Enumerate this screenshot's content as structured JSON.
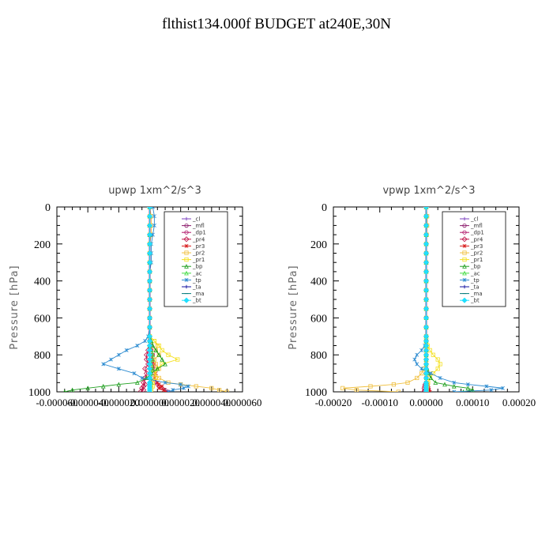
{
  "page": {
    "title": "flthist134.000f  BUDGET at240E,30N"
  },
  "colors": {
    "_cl": "#7b3fbf",
    "_mfl": "#8b1a6b",
    "_dp1": "#b0186a",
    "_pr4": "#c0144a",
    "_pr3": "#d81818",
    "_pr2": "#f0c040",
    "_pr1": "#f4e020",
    "_bp": "#20a020",
    "_ac": "#44dd44",
    "_tp": "#2a8ad0",
    "_ta": "#1010a0",
    "_ma": "#007878",
    "_bt": "#20e0ff"
  },
  "chart_data": [
    {
      "type": "line",
      "title": "upwp   1xm^2/s^3",
      "ylabel": "Pressure  [hPa]",
      "ylim": [
        1000,
        0
      ],
      "yticks": [
        "0",
        "200",
        "400",
        "600",
        "800",
        "1000"
      ],
      "xlim": [
        -6e-05,
        6e-05
      ],
      "xticks": [
        "-0.000060",
        "-0.000040",
        "-0.000020",
        "0.000000",
        "0.000020",
        "0.000040",
        "0.000060"
      ],
      "legend": [
        "_cl",
        "_mfl",
        "_dp1",
        "_pr4",
        "_pr3",
        "_pr2",
        "_pr1",
        "_bp",
        "_ac",
        "_tp",
        "_ta",
        "_ma",
        "_bt"
      ],
      "legend_position": "top-right",
      "pressure": [
        0,
        50,
        100,
        150,
        200,
        250,
        300,
        350,
        400,
        450,
        500,
        550,
        600,
        650,
        700,
        725,
        750,
        775,
        800,
        825,
        850,
        875,
        900,
        925,
        950,
        960,
        970,
        980,
        990,
        1000
      ],
      "series": [
        {
          "name": "_cl",
          "values": [
            0,
            0,
            0,
            0,
            0,
            0,
            0,
            0,
            0,
            0,
            0,
            0,
            0,
            0,
            0,
            0,
            0,
            0,
            0,
            0,
            0,
            0,
            0,
            0,
            0,
            0,
            0,
            0,
            0,
            0
          ]
        },
        {
          "name": "_mfl",
          "values": [
            0,
            0,
            0,
            0,
            0,
            0,
            0,
            0,
            0,
            0,
            0,
            0,
            0,
            0,
            0,
            0,
            0,
            0,
            0,
            0,
            0,
            0,
            0,
            0,
            0,
            0,
            0,
            0,
            0,
            0
          ]
        },
        {
          "name": "_dp1",
          "values": [
            0,
            0,
            0,
            0,
            0,
            0,
            0,
            0,
            0,
            0,
            0,
            0,
            0,
            0,
            0,
            0,
            0,
            1e-06,
            2e-06,
            1e-06,
            2e-06,
            3e-06,
            2e-06,
            4e-06,
            3e-06,
            5e-06,
            6e-06,
            8e-06,
            1e-05,
            1.2e-05
          ]
        },
        {
          "name": "_pr4",
          "values": [
            0,
            0,
            0,
            0,
            0,
            0,
            0,
            0,
            0,
            0,
            0,
            0,
            0,
            0,
            0,
            0,
            0,
            -1e-06,
            -2e-06,
            -2e-06,
            -1e-06,
            -3e-06,
            -2e-06,
            -3e-06,
            -4e-06,
            -3e-06,
            -4e-06,
            -5e-06,
            -4e-06,
            -6e-06
          ]
        },
        {
          "name": "_pr3",
          "values": [
            0,
            0,
            0,
            0,
            0,
            0,
            0,
            0,
            0,
            0,
            0,
            0,
            0,
            0,
            0,
            0,
            1e-06,
            1e-06,
            2e-06,
            2e-06,
            3e-06,
            2e-06,
            4e-06,
            3e-06,
            5e-06,
            6e-06,
            8e-06,
            6e-06,
            9e-06,
            1e-05
          ]
        },
        {
          "name": "_pr2",
          "values": [
            0,
            1e-06,
            1e-06,
            1e-06,
            0,
            0,
            0,
            0,
            0,
            0,
            0,
            0,
            0,
            0,
            0,
            3e-06,
            5e-06,
            4e-06,
            6e-06,
            3e-06,
            4e-06,
            6e-06,
            3e-06,
            6e-06,
            1.2e-05,
            2e-05,
            3e-05,
            4e-05,
            4.5e-05,
            5e-05
          ]
        },
        {
          "name": "_pr1",
          "values": [
            0,
            0,
            0,
            0,
            0,
            0,
            0,
            0,
            0,
            0,
            0,
            0,
            0,
            0,
            0,
            3e-06,
            6e-06,
            8e-06,
            1.2e-05,
            1.8e-05,
            8e-06,
            5e-06,
            3e-06,
            4e-06,
            2e-06,
            1e-06,
            2e-06,
            1e-06,
            1e-06,
            1e-06
          ]
        },
        {
          "name": "_bp",
          "values": [
            0,
            0,
            0,
            0,
            0,
            0,
            0,
            0,
            0,
            0,
            0,
            0,
            0,
            0,
            0,
            1e-06,
            2e-06,
            4e-06,
            6e-06,
            8e-06,
            1e-05,
            5e-06,
            1e-06,
            -2e-06,
            -8e-06,
            -2e-05,
            -3e-05,
            -4e-05,
            -5e-05,
            -5.5e-05
          ]
        },
        {
          "name": "_ac",
          "values": [
            0,
            0,
            0,
            0,
            0,
            0,
            0,
            0,
            0,
            0,
            0,
            0,
            0,
            0,
            0,
            0,
            0,
            1e-06,
            2e-06,
            2e-06,
            1e-06,
            2e-06,
            1e-06,
            1e-06,
            1e-06,
            0,
            0,
            0,
            0,
            0
          ]
        },
        {
          "name": "_tp",
          "values": [
            2e-06,
            3e-06,
            3e-06,
            2e-06,
            1e-06,
            1e-06,
            1e-06,
            0,
            0,
            0,
            0,
            0,
            0,
            0,
            -1e-06,
            -3e-06,
            -8e-06,
            -1.5e-05,
            -2e-05,
            -2.5e-05,
            -3e-05,
            -2e-05,
            -1e-05,
            -5e-06,
            1e-05,
            2e-05,
            2.5e-05,
            2.2e-05,
            1.5e-05,
            1.2e-05
          ]
        },
        {
          "name": "_ta",
          "values": [
            0,
            0,
            0,
            0,
            0,
            0,
            0,
            0,
            0,
            0,
            0,
            0,
            0,
            0,
            0,
            0,
            0,
            0,
            0,
            0,
            0,
            0,
            0,
            0,
            0,
            0,
            0,
            0,
            0,
            0
          ]
        },
        {
          "name": "_ma",
          "values": [
            0,
            0,
            0,
            0,
            0,
            0,
            0,
            0,
            0,
            0,
            0,
            0,
            0,
            0,
            0,
            0,
            0,
            0,
            0,
            0,
            0,
            0,
            0,
            0,
            0,
            0,
            0,
            0,
            0,
            0
          ]
        },
        {
          "name": "_bt",
          "values": [
            0,
            0,
            0,
            0,
            0,
            0,
            0,
            0,
            0,
            0,
            0,
            0,
            0,
            0,
            0,
            0,
            0,
            0,
            0,
            0,
            0,
            0,
            0,
            0,
            0,
            0,
            0,
            0,
            0,
            0
          ]
        }
      ]
    },
    {
      "type": "line",
      "title": "vpwp   1xm^2/s^3",
      "ylabel": "Pressure  [hPa]",
      "ylim": [
        1000,
        0
      ],
      "yticks": [
        "0",
        "200",
        "400",
        "600",
        "800",
        "1000"
      ],
      "xlim": [
        -0.0002,
        0.0002
      ],
      "xticks": [
        "-0.00020",
        "-0.00010",
        "0.00000",
        "0.00010",
        "0.00020"
      ],
      "legend": [
        "_cl",
        "_mfl",
        "_dp1",
        "_pr4",
        "_pr3",
        "_pr2",
        "_pr1",
        "_bp",
        "_ac",
        "_tp",
        "_ta",
        "_ma",
        "_bt"
      ],
      "legend_position": "top-right",
      "pressure": [
        0,
        50,
        100,
        150,
        200,
        250,
        300,
        350,
        400,
        450,
        500,
        550,
        600,
        650,
        700,
        725,
        750,
        775,
        800,
        825,
        850,
        875,
        900,
        925,
        950,
        960,
        970,
        980,
        990,
        1000
      ],
      "series": [
        {
          "name": "_cl",
          "values": [
            0,
            0,
            0,
            0,
            0,
            0,
            0,
            0,
            0,
            0,
            0,
            0,
            0,
            0,
            0,
            0,
            0,
            0,
            0,
            0,
            0,
            0,
            0,
            0,
            0,
            0,
            0,
            0,
            0,
            0
          ]
        },
        {
          "name": "_mfl",
          "values": [
            0,
            0,
            0,
            0,
            0,
            0,
            0,
            0,
            0,
            0,
            0,
            0,
            0,
            0,
            0,
            0,
            0,
            0,
            0,
            0,
            0,
            0,
            0,
            0,
            0,
            0,
            0,
            0,
            0,
            0
          ]
        },
        {
          "name": "_dp1",
          "values": [
            0,
            0,
            0,
            0,
            0,
            0,
            0,
            0,
            0,
            0,
            0,
            0,
            0,
            0,
            0,
            0,
            0,
            0,
            0,
            0,
            0,
            0,
            0,
            0,
            0,
            2e-06,
            3e-06,
            4e-06,
            5e-06,
            6e-06
          ]
        },
        {
          "name": "_pr4",
          "values": [
            0,
            0,
            0,
            0,
            0,
            0,
            0,
            0,
            0,
            0,
            0,
            0,
            0,
            0,
            0,
            0,
            0,
            0,
            0,
            0,
            0,
            0,
            0,
            0,
            0,
            -2e-06,
            -3e-06,
            -4e-06,
            -3e-06,
            -5e-06
          ]
        },
        {
          "name": "_pr3",
          "values": [
            0,
            0,
            0,
            0,
            0,
            0,
            0,
            0,
            0,
            0,
            0,
            0,
            0,
            0,
            0,
            0,
            0,
            0,
            0,
            0,
            0,
            0,
            0,
            0,
            0,
            3e-06,
            4e-06,
            5e-06,
            6e-06,
            8e-06
          ]
        },
        {
          "name": "_pr2",
          "values": [
            0,
            2e-06,
            2e-06,
            1e-06,
            0,
            0,
            0,
            0,
            0,
            0,
            0,
            0,
            0,
            0,
            0,
            0,
            0,
            0,
            0,
            0,
            0,
            -5e-06,
            -1e-05,
            -2e-05,
            -4e-05,
            -7e-05,
            -0.00012,
            -0.00018,
            -0.00015,
            -6e-05
          ]
        },
        {
          "name": "_pr1",
          "values": [
            0,
            0,
            0,
            0,
            0,
            0,
            0,
            0,
            0,
            0,
            0,
            0,
            0,
            0,
            0,
            0,
            3e-06,
            8e-06,
            1.5e-05,
            2.5e-05,
            3e-05,
            2.5e-05,
            1.5e-05,
            8e-06,
            4e-06,
            2e-06,
            2e-06,
            1e-06,
            1e-06,
            1e-06
          ]
        },
        {
          "name": "_bp",
          "values": [
            0,
            0,
            0,
            0,
            0,
            0,
            0,
            0,
            0,
            0,
            0,
            0,
            0,
            0,
            0,
            0,
            0,
            0,
            0,
            0,
            0,
            2e-06,
            5e-06,
            1e-05,
            2e-05,
            4e-05,
            6e-05,
            9e-05,
            0.0001,
            8e-05
          ]
        },
        {
          "name": "_ac",
          "values": [
            0,
            0,
            0,
            0,
            0,
            0,
            0,
            0,
            0,
            0,
            0,
            0,
            0,
            0,
            0,
            0,
            0,
            0,
            0,
            0,
            0,
            0,
            0,
            0,
            0,
            0,
            0,
            0,
            0,
            0
          ]
        },
        {
          "name": "_tp",
          "values": [
            0,
            0,
            0,
            0,
            0,
            0,
            0,
            0,
            0,
            0,
            0,
            0,
            0,
            0,
            0,
            0,
            -3e-06,
            -1e-05,
            -2e-05,
            -2.5e-05,
            -2e-05,
            -1e-05,
            1e-05,
            3e-05,
            6e-05,
            9e-05,
            0.00013,
            0.000165,
            0.00014,
            6e-05
          ]
        },
        {
          "name": "_ta",
          "values": [
            0,
            0,
            0,
            0,
            0,
            0,
            0,
            0,
            0,
            0,
            0,
            0,
            0,
            0,
            0,
            0,
            0,
            0,
            0,
            0,
            0,
            0,
            0,
            0,
            0,
            0,
            0,
            0,
            0,
            0
          ]
        },
        {
          "name": "_ma",
          "values": [
            0,
            0,
            0,
            0,
            0,
            0,
            0,
            0,
            0,
            0,
            0,
            0,
            0,
            0,
            0,
            0,
            0,
            0,
            0,
            0,
            0,
            0,
            0,
            0,
            0,
            0,
            0,
            0,
            0,
            0
          ]
        },
        {
          "name": "_bt",
          "values": [
            0,
            0,
            0,
            0,
            0,
            0,
            0,
            0,
            0,
            0,
            0,
            0,
            0,
            0,
            0,
            0,
            0,
            0,
            0,
            0,
            0,
            0,
            0,
            0,
            0,
            0,
            0,
            0,
            0,
            0
          ]
        }
      ]
    }
  ]
}
